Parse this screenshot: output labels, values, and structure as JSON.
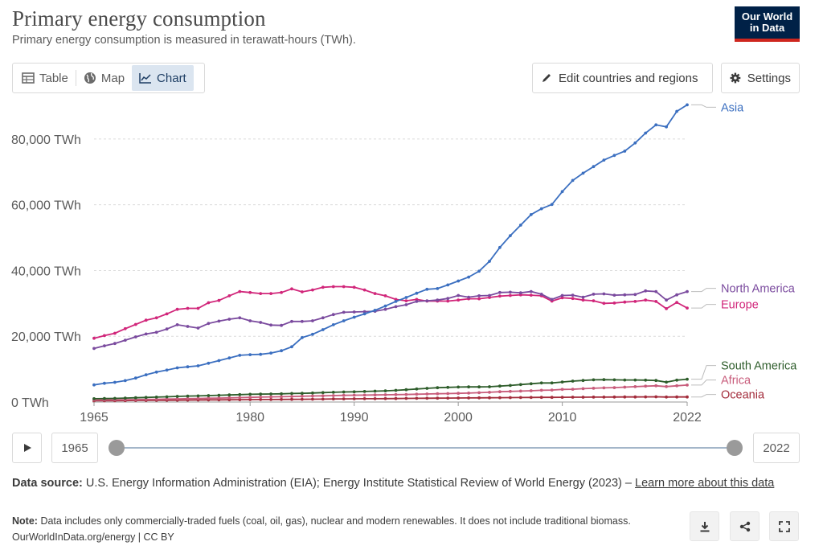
{
  "header": {
    "title": "Primary energy consumption",
    "subtitle": "Primary energy consumption is measured in terawatt-hours (TWh).",
    "logo_line1": "Our World",
    "logo_line2": "in Data"
  },
  "tabs": [
    {
      "label": "Table",
      "icon": "table-icon"
    },
    {
      "label": "Map",
      "icon": "globe-icon"
    },
    {
      "label": "Chart",
      "icon": "line-chart-icon",
      "active": true
    }
  ],
  "toolbar": {
    "edit_label": "Edit countries and regions",
    "settings_label": "Settings"
  },
  "timeline": {
    "start_year": "1965",
    "end_year": "2022"
  },
  "footer": {
    "source_label": "Data source:",
    "source_text": "U.S. Energy Information Administration (EIA); Energy Institute Statistical Review of World Energy (2023) –",
    "learn_more": "Learn more about this data",
    "note_label": "Note:",
    "note_text": "Data includes only commercially-traded fuels (coal, oil, gas), nuclear and modern renewables. It does not include traditional biomass.",
    "attribution": "OurWorldInData.org/energy | CC BY"
  },
  "colors": {
    "asia": "#3b6fc0",
    "north_america": "#7a4a9e",
    "europe": "#d1267a",
    "south_america": "#2e5d2b",
    "africa": "#c85c7b",
    "oceania": "#a32d3c"
  },
  "chart_data": {
    "type": "line",
    "x": [
      1965,
      1966,
      1967,
      1968,
      1969,
      1970,
      1971,
      1972,
      1973,
      1974,
      1975,
      1976,
      1977,
      1978,
      1979,
      1980,
      1981,
      1982,
      1983,
      1984,
      1985,
      1986,
      1987,
      1988,
      1989,
      1990,
      1991,
      1992,
      1993,
      1994,
      1995,
      1996,
      1997,
      1998,
      1999,
      2000,
      2001,
      2002,
      2003,
      2004,
      2005,
      2006,
      2007,
      2008,
      2009,
      2010,
      2011,
      2012,
      2013,
      2014,
      2015,
      2016,
      2017,
      2018,
      2019,
      2020,
      2021,
      2022
    ],
    "xticks": [
      "1965",
      "1980",
      "1990",
      "2000",
      "2010",
      "2022"
    ],
    "xtick_values": [
      1965,
      1980,
      1990,
      2000,
      2010,
      2022
    ],
    "ylim": [
      0,
      90000
    ],
    "yticks": [
      0,
      20000,
      40000,
      60000,
      80000
    ],
    "ytick_labels": [
      "0 TWh",
      "20,000 TWh",
      "40,000 TWh",
      "60,000 TWh",
      "80,000 TWh"
    ],
    "grid": true,
    "series": [
      {
        "name": "Asia",
        "key": "asia",
        "values": [
          5200,
          5700,
          6000,
          6500,
          7300,
          8300,
          9100,
          9700,
          10400,
          10700,
          11000,
          11800,
          12600,
          13400,
          14200,
          14400,
          14500,
          14900,
          15600,
          16800,
          19600,
          20600,
          22000,
          23500,
          24700,
          25800,
          26800,
          27900,
          29200,
          30600,
          31800,
          33100,
          34300,
          34500,
          35600,
          36800,
          38000,
          39800,
          42800,
          47000,
          50600,
          53800,
          57000,
          58800,
          60100,
          64000,
          67400,
          69600,
          71600,
          73600,
          75000,
          76300,
          78800,
          81800,
          84300,
          83700,
          88400,
          90400
        ]
      },
      {
        "name": "North America",
        "key": "north_america",
        "values": [
          16300,
          17100,
          17800,
          18800,
          19800,
          20700,
          21200,
          22200,
          23500,
          23000,
          22500,
          23900,
          24600,
          25200,
          25600,
          24700,
          24200,
          23400,
          23300,
          24500,
          24500,
          24700,
          25600,
          26600,
          27300,
          27400,
          27500,
          27600,
          28200,
          29000,
          29600,
          30600,
          30800,
          31000,
          31500,
          32400,
          31900,
          32300,
          32400,
          33300,
          33400,
          33200,
          33600,
          32800,
          31200,
          32400,
          32500,
          31900,
          32800,
          32900,
          32500,
          32600,
          32700,
          33800,
          33600,
          31000,
          32600,
          33600
        ]
      },
      {
        "name": "Europe",
        "key": "europe",
        "values": [
          19400,
          20200,
          20900,
          22300,
          23600,
          24900,
          25600,
          26800,
          28200,
          28500,
          28500,
          30200,
          30900,
          32300,
          33600,
          33300,
          33000,
          33000,
          33300,
          34400,
          33500,
          34100,
          34900,
          35100,
          35100,
          34900,
          34100,
          33000,
          32300,
          31200,
          30800,
          31200,
          30700,
          30700,
          30700,
          31000,
          31400,
          31400,
          31800,
          32200,
          32400,
          32600,
          32500,
          32300,
          30700,
          31700,
          31500,
          31000,
          30800,
          30000,
          30100,
          30400,
          30600,
          31000,
          30600,
          28400,
          30300,
          28600
        ]
      },
      {
        "name": "South America",
        "key": "south_america",
        "values": [
          1000,
          1050,
          1100,
          1200,
          1300,
          1400,
          1500,
          1600,
          1700,
          1800,
          1850,
          1950,
          2050,
          2150,
          2250,
          2350,
          2400,
          2450,
          2500,
          2600,
          2650,
          2750,
          2850,
          2950,
          3050,
          3100,
          3200,
          3300,
          3400,
          3550,
          3750,
          3950,
          4150,
          4350,
          4450,
          4550,
          4600,
          4600,
          4650,
          4850,
          5050,
          5300,
          5550,
          5800,
          5800,
          6100,
          6350,
          6550,
          6750,
          6800,
          6750,
          6700,
          6700,
          6650,
          6550,
          6050,
          6650,
          6950
        ]
      },
      {
        "name": "Africa",
        "key": "africa",
        "values": [
          600,
          630,
          660,
          700,
          740,
          790,
          840,
          900,
          960,
          1020,
          1070,
          1140,
          1210,
          1280,
          1350,
          1420,
          1500,
          1560,
          1610,
          1680,
          1750,
          1830,
          1890,
          1960,
          2020,
          2070,
          2110,
          2150,
          2190,
          2240,
          2300,
          2370,
          2440,
          2510,
          2570,
          2640,
          2720,
          2830,
          2960,
          3120,
          3230,
          3320,
          3430,
          3580,
          3640,
          3830,
          3880,
          4070,
          4170,
          4300,
          4380,
          4520,
          4680,
          4820,
          4950,
          4700,
          4950,
          5150
        ]
      },
      {
        "name": "Oceania",
        "key": "oceania",
        "values": [
          380,
          400,
          420,
          450,
          480,
          500,
          520,
          540,
          570,
          590,
          610,
          630,
          660,
          690,
          720,
          740,
          750,
          760,
          780,
          810,
          830,
          850,
          880,
          920,
          950,
          980,
          1000,
          1010,
          1030,
          1060,
          1100,
          1120,
          1150,
          1180,
          1210,
          1230,
          1250,
          1270,
          1290,
          1320,
          1350,
          1380,
          1400,
          1420,
          1420,
          1440,
          1460,
          1460,
          1480,
          1490,
          1510,
          1530,
          1550,
          1570,
          1580,
          1520,
          1530,
          1550
        ]
      }
    ]
  }
}
